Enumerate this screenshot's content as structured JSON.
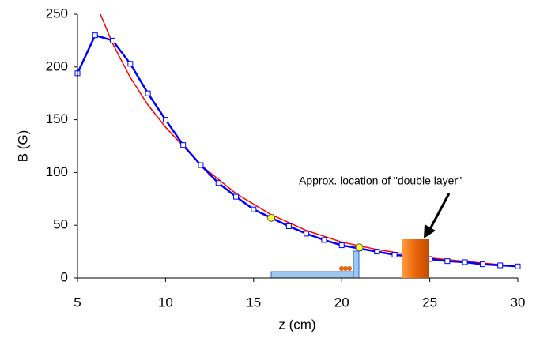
{
  "chart_data": {
    "type": "line",
    "x_label": "z (cm)",
    "y_label": "B (G)",
    "annotation": "Approx. location of \"double layer\"",
    "xlim": [
      5,
      30
    ],
    "xticks": [
      5,
      10,
      15,
      20,
      25,
      30
    ],
    "ylim": [
      0,
      250
    ],
    "yticks": [
      0,
      50,
      100,
      150,
      200,
      250
    ],
    "grid": false,
    "series": [
      {
        "color": "#ff0000",
        "marker": "none",
        "line": true,
        "x": [
          6.3,
          7,
          8,
          9,
          10,
          12,
          14,
          16,
          18,
          20,
          22,
          25,
          30
        ],
        "values": [
          250,
          222,
          190,
          164,
          143,
          107,
          80,
          60,
          45,
          34,
          27,
          19,
          11
        ]
      },
      {
        "color": "#0000ff",
        "marker": "square",
        "line": true,
        "x": [
          5,
          6,
          7,
          8,
          9,
          10,
          11,
          12,
          13,
          14,
          15,
          16,
          17,
          18,
          19,
          20,
          21,
          22,
          23,
          24,
          25,
          26,
          27,
          28,
          29,
          30
        ],
        "values": [
          194,
          230,
          225,
          203,
          175,
          150,
          126,
          107,
          90,
          77,
          65,
          57,
          49,
          42,
          36,
          31,
          28,
          25,
          22,
          20,
          18,
          16,
          15,
          13,
          12,
          11
        ]
      },
      {
        "color": "#ffff33",
        "marker": "circle",
        "line": false,
        "x": [
          16,
          21
        ],
        "values": [
          57,
          29
        ]
      }
    ]
  }
}
